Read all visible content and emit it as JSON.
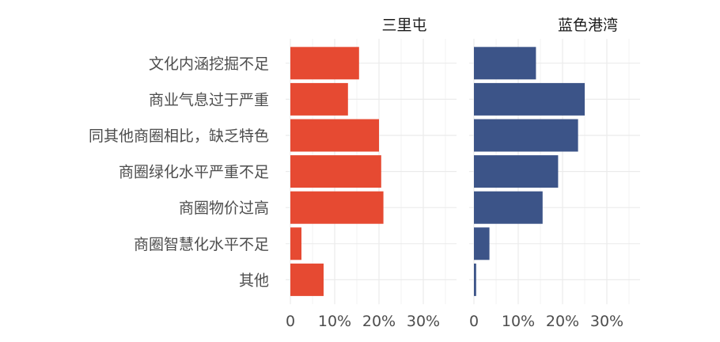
{
  "chart_data": {
    "type": "bar",
    "orientation": "horizontal",
    "categories": [
      "文化内涵挖掘不足",
      "商业气息过于严重",
      "同其他商圈相比，缺乏特色",
      "商圈绿化水平严重不足",
      "商圈物价过高",
      "商圈智慧化水平不足",
      "其他"
    ],
    "series": [
      {
        "name": "三里屯",
        "color": "#e64a32",
        "values": [
          15.5,
          13,
          20,
          20.5,
          21,
          2.5,
          7.5
        ]
      },
      {
        "name": "蓝色港湾",
        "color": "#3c5488",
        "values": [
          14,
          25,
          23.5,
          19,
          15.5,
          3.5,
          0.5
        ]
      }
    ],
    "xlim": [
      0,
      37.5
    ],
    "xticks": [
      "0",
      "10%",
      "20%",
      "30%"
    ],
    "xtick_values": [
      0,
      10,
      20,
      30
    ],
    "grid": true,
    "facet_labels_position": "top",
    "colors": {
      "grid": "#ebebeb",
      "text": "#4d4d4d",
      "facet_text": "#1a1a1a"
    }
  }
}
